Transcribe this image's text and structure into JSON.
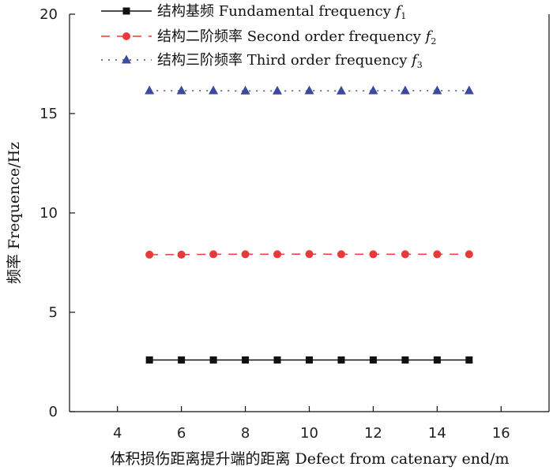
{
  "chart_data": {
    "type": "line",
    "title": "",
    "xlabel": "体积损伤距离提升端的距离 Defect from catenary end/m",
    "ylabel": "频率 Frequence/Hz",
    "xlim": [
      2.5,
      17.5
    ],
    "ylim": [
      0,
      20
    ],
    "xticks": [
      4,
      6,
      8,
      10,
      12,
      14,
      16
    ],
    "yticks": [
      0,
      5,
      10,
      15,
      20
    ],
    "grid": false,
    "legend_position": "top",
    "x": [
      5,
      6,
      7,
      8,
      9,
      10,
      11,
      12,
      13,
      14,
      15
    ],
    "series": [
      {
        "name": "结构基频 Fundamental frequency ",
        "symbol": "f",
        "subscript": "1",
        "color": "#111111",
        "marker": "square",
        "line_style": "solid",
        "values": [
          2.6,
          2.6,
          2.6,
          2.6,
          2.6,
          2.6,
          2.6,
          2.6,
          2.6,
          2.6,
          2.6
        ]
      },
      {
        "name": "结构二阶频率 Second order frequency ",
        "symbol": "f",
        "subscript": "2",
        "color": "#e83a3a",
        "marker": "circle",
        "line_style": "dashed",
        "values": [
          7.9,
          7.9,
          7.92,
          7.92,
          7.92,
          7.93,
          7.92,
          7.92,
          7.92,
          7.92,
          7.92
        ]
      },
      {
        "name": "结构三阶频率 Third order frequency ",
        "symbol": "f",
        "subscript": "3",
        "color": "#3b4a9c",
        "marker": "triangle",
        "line_style": "dotted",
        "values": [
          16.15,
          16.15,
          16.15,
          16.14,
          16.14,
          16.15,
          16.14,
          16.15,
          16.15,
          16.15,
          16.15
        ]
      }
    ]
  }
}
